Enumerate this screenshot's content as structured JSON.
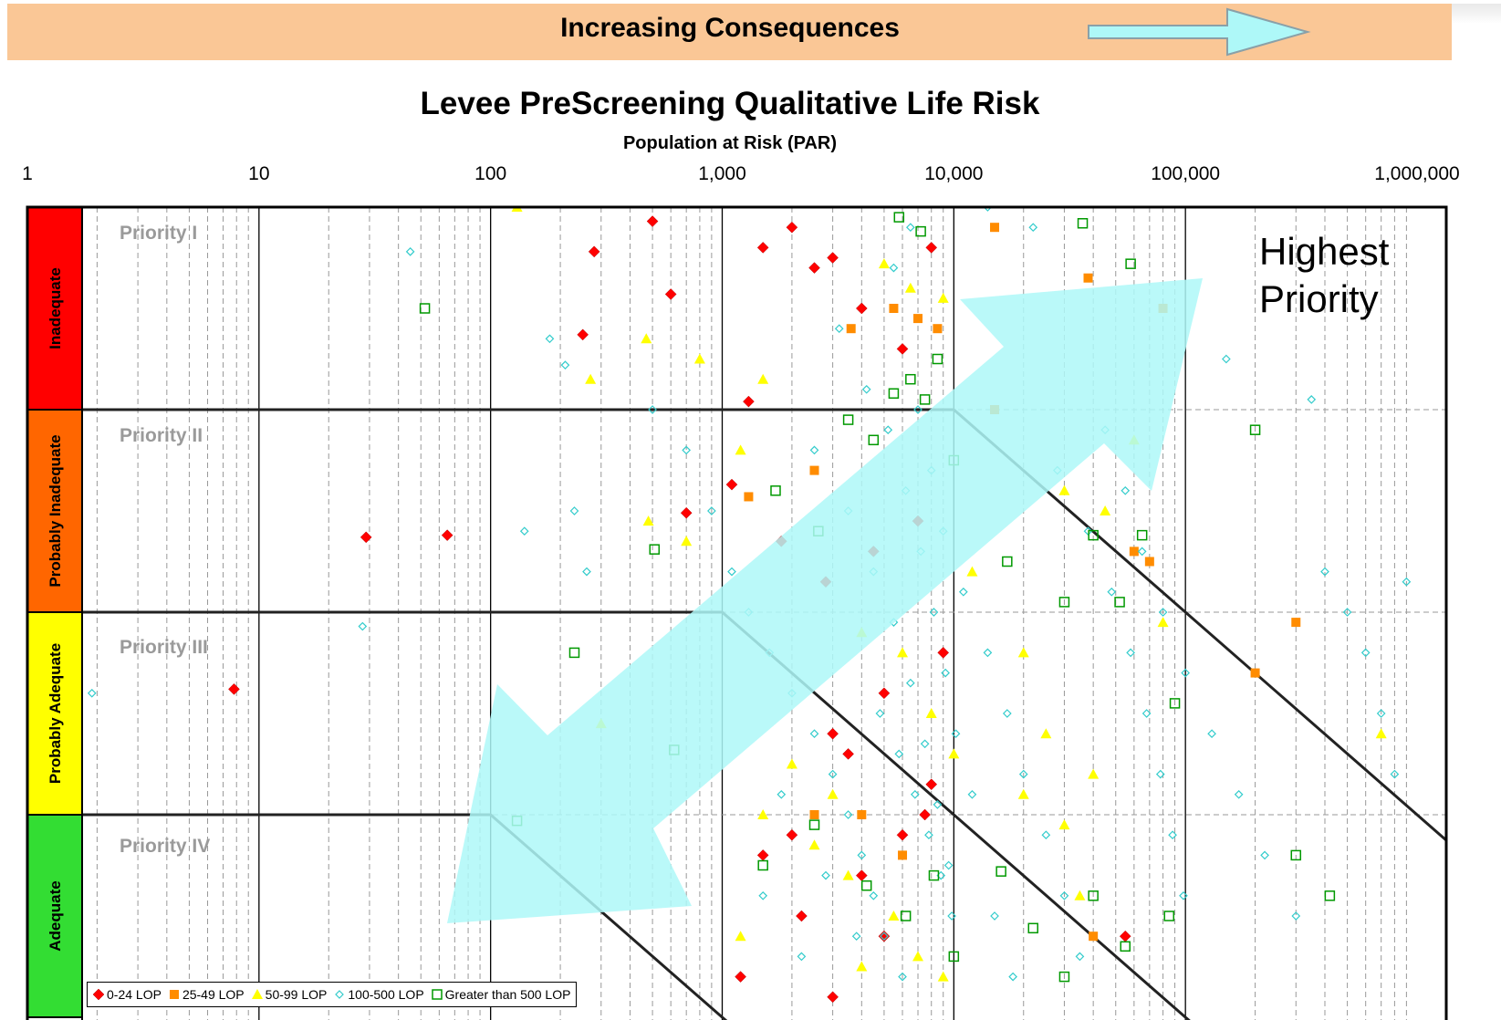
{
  "banner": {
    "title": "Increasing Consequences",
    "arrow_color": "#aef8f8",
    "background_color": "#fac796"
  },
  "chart_data": {
    "type": "scatter",
    "title": "Levee PreScreening Qualitative Life Risk",
    "xlabel": "Population at Risk (PAR)",
    "x_scale": "log",
    "xlim": [
      1,
      1000000
    ],
    "x_ticks": [
      "1",
      "10",
      "100",
      "1,000",
      "10,000",
      "100,000",
      "1,000,000"
    ],
    "y_categories": [
      "Inadequate",
      "Probably Inadequate",
      "Probably Adequate",
      "Adequate"
    ],
    "y_category_colors": [
      "#ff0000",
      "#ff6600",
      "#ffff00",
      "#33dd33"
    ],
    "priority_zones": [
      "Priority I",
      "Priority II",
      "Priority III",
      "Priority IV"
    ],
    "annotation": "Highest Priority",
    "legend": [
      {
        "label": "0-24 LOP",
        "marker": "diamond-filled",
        "color": "#ff0000"
      },
      {
        "label": "25-49 LOP",
        "marker": "square-filled",
        "color": "#ff8c00"
      },
      {
        "label": "50-99 LOP",
        "marker": "triangle-filled",
        "color": "#ffff00"
      },
      {
        "label": "100-500 LOP",
        "marker": "diamond-open",
        "color": "#33cccc"
      },
      {
        "label": "Greater than 500 LOP",
        "marker": "square-open",
        "color": "#009900"
      }
    ],
    "series": [
      {
        "name": "0-24 LOP",
        "points": [
          [
            7.8,
            2.38
          ],
          [
            29,
            1.63
          ],
          [
            65,
            1.62
          ],
          [
            280,
            0.22
          ],
          [
            250,
            0.63
          ],
          [
            600,
            0.43
          ],
          [
            500,
            0.07
          ],
          [
            1100,
            1.37
          ],
          [
            1300,
            0.96
          ],
          [
            1500,
            0.2
          ],
          [
            2000,
            0.1
          ],
          [
            2500,
            0.3
          ],
          [
            3000,
            0.25
          ],
          [
            4000,
            0.5
          ],
          [
            6000,
            0.7
          ],
          [
            8000,
            0.2
          ],
          [
            700,
            1.51
          ],
          [
            1800,
            1.65
          ],
          [
            2800,
            1.85
          ],
          [
            4500,
            1.7
          ],
          [
            7000,
            1.55
          ],
          [
            5000,
            2.4
          ],
          [
            3500,
            2.7
          ],
          [
            8000,
            2.85
          ],
          [
            2000,
            3.1
          ],
          [
            1500,
            3.2
          ],
          [
            6000,
            3.1
          ],
          [
            55000,
            3.6
          ],
          [
            9000,
            2.2
          ],
          [
            3000,
            2.6
          ],
          [
            2200,
            3.5
          ],
          [
            4000,
            3.3
          ],
          [
            7500,
            3.0
          ],
          [
            1200,
            3.8
          ],
          [
            5000,
            3.6
          ],
          [
            3000,
            3.9
          ]
        ]
      },
      {
        "name": "25-49 LOP",
        "points": [
          [
            1300,
            1.43
          ],
          [
            2500,
            1.3
          ],
          [
            3600,
            0.6
          ],
          [
            5500,
            0.5
          ],
          [
            7000,
            0.55
          ],
          [
            8500,
            0.6
          ],
          [
            15000,
            0.1
          ],
          [
            38000,
            0.35
          ],
          [
            80000,
            0.5
          ],
          [
            15000,
            1.0
          ],
          [
            60000,
            1.7
          ],
          [
            70000,
            1.75
          ],
          [
            300000,
            2.05
          ],
          [
            200000,
            2.3
          ],
          [
            4000,
            3.0
          ],
          [
            6000,
            3.2
          ],
          [
            2500,
            3.0
          ],
          [
            40000,
            3.6
          ]
        ]
      },
      {
        "name": "50-99 LOP",
        "points": [
          [
            130,
            0.0
          ],
          [
            270,
            0.85
          ],
          [
            470,
            0.65
          ],
          [
            480,
            1.55
          ],
          [
            700,
            1.65
          ],
          [
            1200,
            1.2
          ],
          [
            1500,
            0.85
          ],
          [
            800,
            0.75
          ],
          [
            5000,
            0.28
          ],
          [
            6500,
            0.4
          ],
          [
            9000,
            0.45
          ],
          [
            30000,
            1.4
          ],
          [
            45000,
            1.5
          ],
          [
            60000,
            1.15
          ],
          [
            80000,
            2.05
          ],
          [
            4000,
            2.1
          ],
          [
            6000,
            2.2
          ],
          [
            8000,
            2.5
          ],
          [
            10000,
            2.7
          ],
          [
            20000,
            2.9
          ],
          [
            30000,
            3.05
          ],
          [
            40000,
            2.8
          ],
          [
            1500,
            3.0
          ],
          [
            2500,
            3.15
          ],
          [
            3500,
            3.3
          ],
          [
            5500,
            3.5
          ],
          [
            7000,
            3.7
          ],
          [
            9000,
            3.8
          ],
          [
            12000,
            1.8
          ],
          [
            20000,
            2.2
          ],
          [
            25000,
            2.6
          ],
          [
            35000,
            3.4
          ],
          [
            300,
            2.55
          ],
          [
            2000,
            2.75
          ],
          [
            3000,
            2.9
          ],
          [
            1200,
            3.6
          ],
          [
            4000,
            3.75
          ],
          [
            700000,
            2.6
          ]
        ]
      },
      {
        "name": "100-500 LOP",
        "points": [
          [
            1.9,
            2.4
          ],
          [
            45,
            0.22
          ],
          [
            28,
            2.07
          ],
          [
            140,
            1.6
          ],
          [
            180,
            0.65
          ],
          [
            210,
            0.78
          ],
          [
            230,
            1.5
          ],
          [
            260,
            1.8
          ],
          [
            500,
            1.0
          ],
          [
            700,
            1.2
          ],
          [
            900,
            1.5
          ],
          [
            1100,
            1.8
          ],
          [
            1300,
            2.0
          ],
          [
            1600,
            2.2
          ],
          [
            2000,
            2.4
          ],
          [
            2500,
            2.6
          ],
          [
            3000,
            2.8
          ],
          [
            3500,
            3.0
          ],
          [
            4000,
            3.2
          ],
          [
            4500,
            3.4
          ],
          [
            5000,
            3.6
          ],
          [
            6000,
            3.8
          ],
          [
            7000,
            1.0
          ],
          [
            8000,
            1.3
          ],
          [
            9000,
            1.6
          ],
          [
            11000,
            1.9
          ],
          [
            14000,
            2.2
          ],
          [
            17000,
            2.5
          ],
          [
            20000,
            2.8
          ],
          [
            25000,
            3.1
          ],
          [
            30000,
            3.4
          ],
          [
            35000,
            3.7
          ],
          [
            45000,
            1.1
          ],
          [
            55000,
            1.4
          ],
          [
            65000,
            1.7
          ],
          [
            80000,
            2.0
          ],
          [
            100000,
            2.3
          ],
          [
            130000,
            2.6
          ],
          [
            170000,
            2.9
          ],
          [
            220000,
            3.2
          ],
          [
            300000,
            3.5
          ],
          [
            400000,
            1.8
          ],
          [
            500000,
            2.0
          ],
          [
            600000,
            2.2
          ],
          [
            700000,
            2.5
          ],
          [
            800000,
            2.8
          ],
          [
            3200,
            0.6
          ],
          [
            4200,
            0.9
          ],
          [
            5200,
            1.1
          ],
          [
            6200,
            1.4
          ],
          [
            7200,
            1.7
          ],
          [
            8200,
            2.0
          ],
          [
            9200,
            2.3
          ],
          [
            10200,
            2.6
          ],
          [
            12000,
            2.9
          ],
          [
            1500,
            3.4
          ],
          [
            2200,
            3.7
          ],
          [
            5500,
            0.3
          ],
          [
            6500,
            0.1
          ],
          [
            14000,
            0.0
          ],
          [
            22000,
            0.1
          ],
          [
            150000,
            0.75
          ],
          [
            350000,
            0.95
          ],
          [
            900000,
            1.85
          ],
          [
            2500,
            1.2
          ],
          [
            3500,
            1.5
          ],
          [
            4500,
            1.8
          ],
          [
            5500,
            2.05
          ],
          [
            6500,
            2.35
          ],
          [
            7500,
            2.65
          ],
          [
            8500,
            2.95
          ],
          [
            9500,
            3.25
          ],
          [
            15000,
            3.5
          ],
          [
            18000,
            3.8
          ],
          [
            28000,
            1.3
          ],
          [
            38000,
            1.6
          ],
          [
            48000,
            1.9
          ],
          [
            58000,
            2.2
          ],
          [
            68000,
            2.5
          ],
          [
            78000,
            2.8
          ],
          [
            88000,
            3.1
          ],
          [
            98000,
            3.4
          ],
          [
            1800,
            2.9
          ],
          [
            2800,
            3.3
          ],
          [
            3800,
            3.6
          ],
          [
            4800,
            2.5
          ],
          [
            5800,
            2.7
          ],
          [
            6800,
            2.9
          ],
          [
            7800,
            3.1
          ],
          [
            8800,
            3.3
          ],
          [
            9800,
            3.5
          ]
        ]
      },
      {
        "name": "Greater than 500 LOP",
        "points": [
          [
            52,
            0.5
          ],
          [
            620,
            2.68
          ],
          [
            510,
            1.69
          ],
          [
            230,
            2.2
          ],
          [
            1700,
            1.4
          ],
          [
            2600,
            1.6
          ],
          [
            3500,
            1.05
          ],
          [
            4500,
            1.15
          ],
          [
            5500,
            0.92
          ],
          [
            6500,
            0.85
          ],
          [
            7500,
            0.95
          ],
          [
            8500,
            0.75
          ],
          [
            5800,
            0.05
          ],
          [
            7200,
            0.12
          ],
          [
            10000,
            1.25
          ],
          [
            17000,
            1.75
          ],
          [
            30000,
            1.95
          ],
          [
            40000,
            1.62
          ],
          [
            52000,
            1.95
          ],
          [
            90000,
            2.45
          ],
          [
            65000,
            1.62
          ],
          [
            130,
            3.03
          ],
          [
            1500,
            3.25
          ],
          [
            2500,
            3.05
          ],
          [
            4200,
            3.35
          ],
          [
            6200,
            3.5
          ],
          [
            8200,
            3.3
          ],
          [
            10000,
            3.7
          ],
          [
            16000,
            3.28
          ],
          [
            22000,
            3.56
          ],
          [
            30000,
            3.8
          ],
          [
            40000,
            3.4
          ],
          [
            55000,
            3.65
          ],
          [
            85000,
            3.5
          ],
          [
            200000,
            1.1
          ],
          [
            300000,
            3.2
          ],
          [
            420000,
            3.4
          ],
          [
            36000,
            0.08
          ],
          [
            58000,
            0.28
          ]
        ]
      }
    ]
  }
}
